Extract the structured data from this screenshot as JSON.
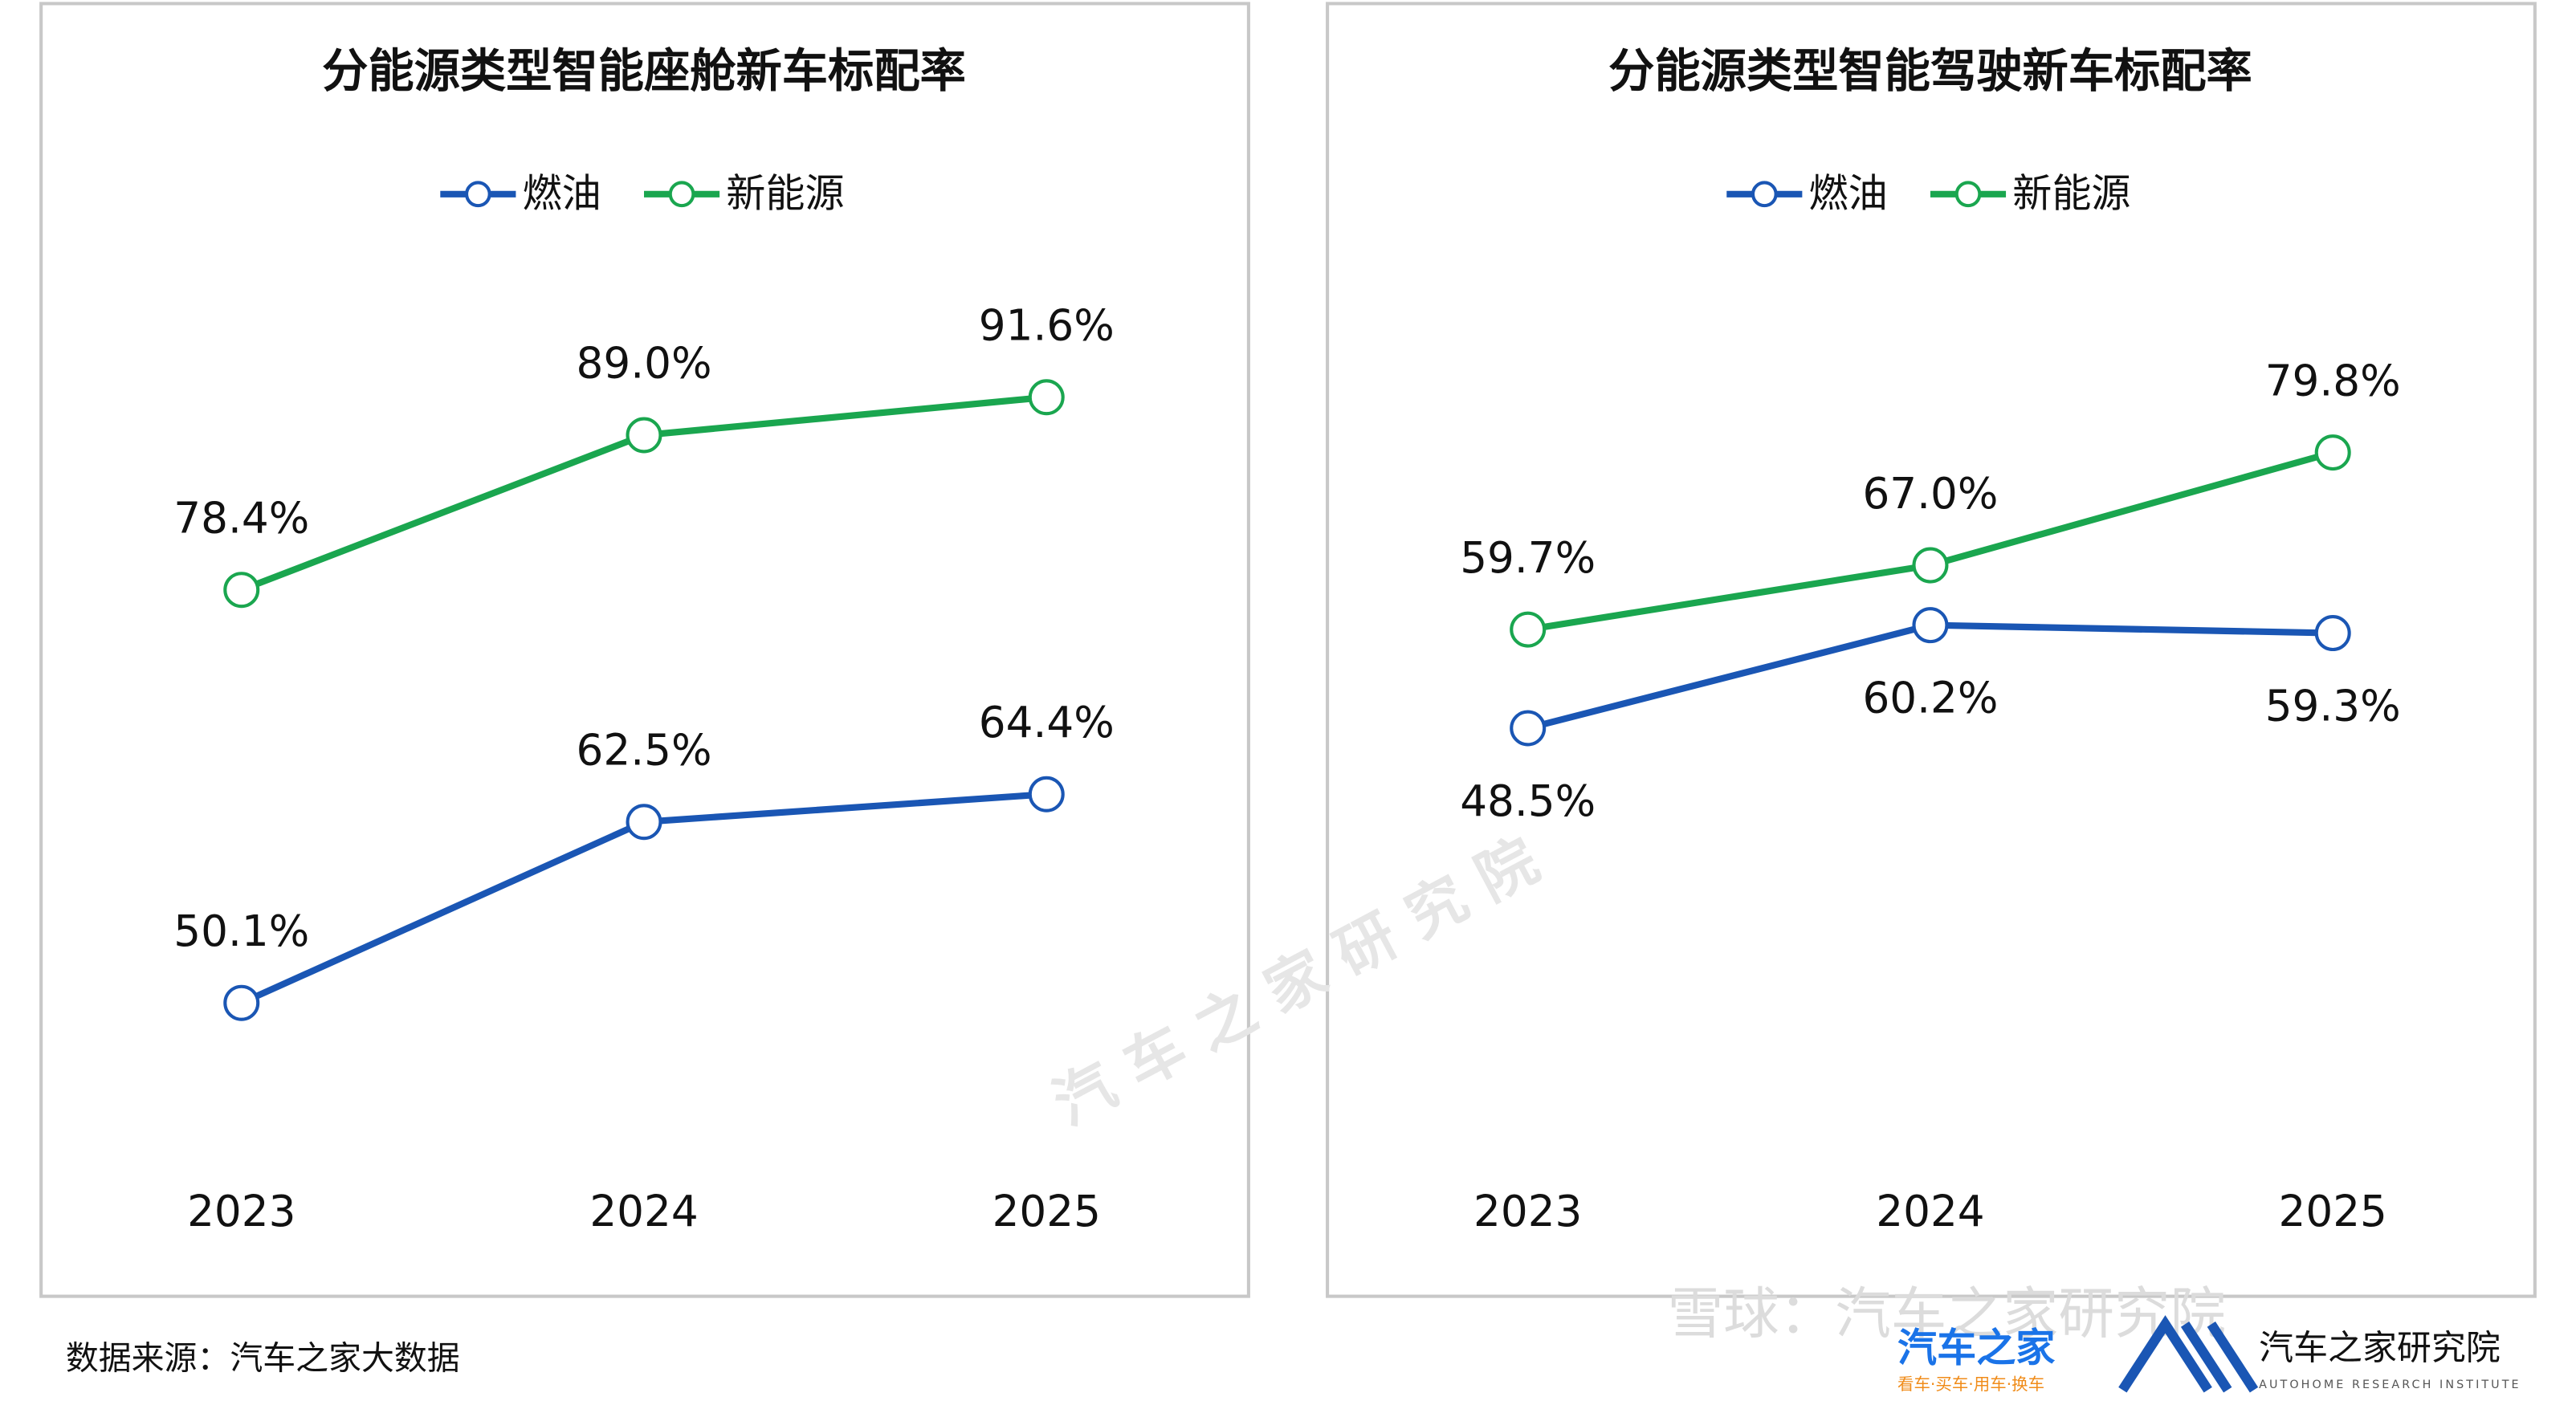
{
  "chart_data": [
    {
      "type": "line",
      "title": "分能源类型智能座舱新车标配率",
      "categories": [
        "2023",
        "2024",
        "2025"
      ],
      "series": [
        {
          "name": "燃油",
          "color": "#1a56b4",
          "values": [
            50.1,
            62.5,
            64.4
          ],
          "value_labels": [
            "50.1%",
            "62.5%",
            "64.4%"
          ],
          "value_label_position": "above"
        },
        {
          "name": "新能源",
          "color": "#1aa64f",
          "values": [
            78.4,
            89.0,
            91.6
          ],
          "value_labels": [
            "78.4%",
            "89.0%",
            "91.6%"
          ],
          "value_label_position": "above"
        }
      ],
      "ylim": [
        30,
        100
      ],
      "legend": "top"
    },
    {
      "type": "line",
      "title": "分能源类型智能驾驶新车标配率",
      "categories": [
        "2023",
        "2024",
        "2025"
      ],
      "series": [
        {
          "name": "燃油",
          "color": "#1a56b4",
          "values": [
            48.5,
            60.2,
            59.3
          ],
          "value_labels": [
            "48.5%",
            "60.2%",
            "59.3%"
          ],
          "value_label_position": "below"
        },
        {
          "name": "新能源",
          "color": "#1aa64f",
          "values": [
            59.7,
            67.0,
            79.8
          ],
          "value_labels": [
            "59.7%",
            "67.0%",
            "79.8%"
          ],
          "value_label_position": "above"
        }
      ],
      "ylim": [
        -16,
        100
      ],
      "legend": "top"
    }
  ],
  "footer": {
    "source": "数据来源：汽车之家大数据"
  },
  "watermark": {
    "center": "汽 车 之 家 研 究 院",
    "corner": "雪球：汽车之家研究院"
  },
  "logos": {
    "brand": "汽车之家",
    "slogan": "看车·买车·用车·换车",
    "institute": "汽车之家研究院",
    "institute_en": "AUTOHOME RESEARCH INSTITUTE"
  }
}
